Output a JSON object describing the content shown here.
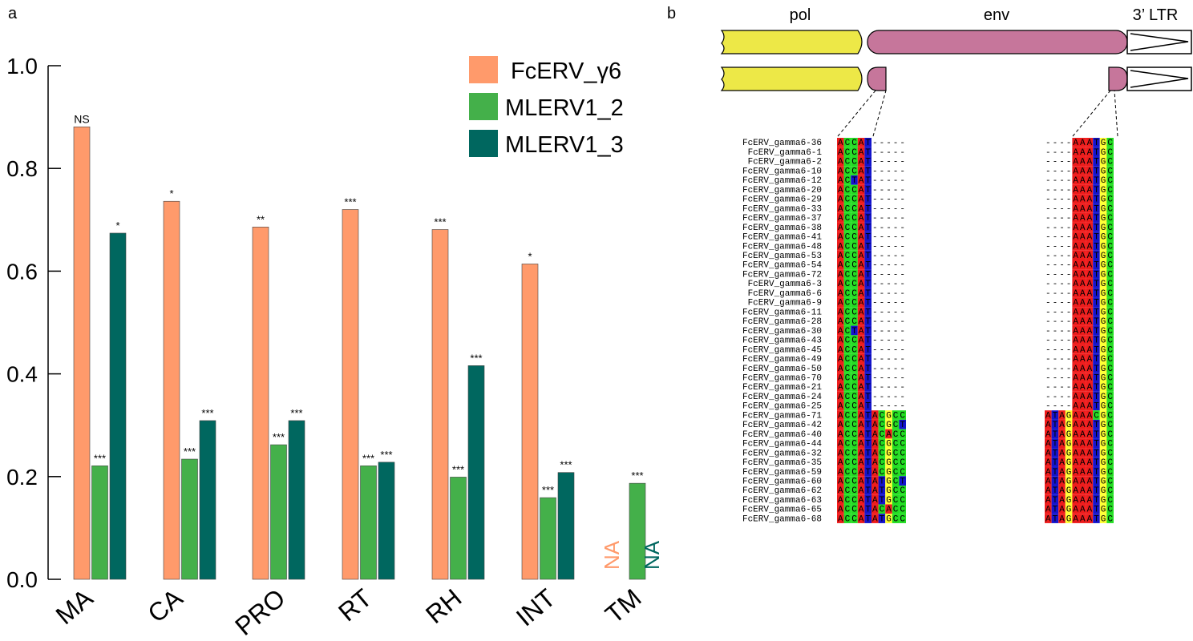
{
  "panel_a": {
    "label": "a",
    "na_label": "NA"
  },
  "panel_b": {
    "label": "b",
    "genes": {
      "pol": "pol",
      "env": "env",
      "ltr": "3’ LTR"
    },
    "sequence_names": [
      "FcERV_gamma6-36",
      "FcERV_gamma6-1",
      "FcERV_gamma6-2",
      "FcERV_gamma6-10",
      "FcERV_gamma6-12",
      "FcERV_gamma6-20",
      "FcERV_gamma6-29",
      "FcERV_gamma6-33",
      "FcERV_gamma6-37",
      "FcERV_gamma6-38",
      "FcERV_gamma6-41",
      "FcERV_gamma6-48",
      "FcERV_gamma6-53",
      "FcERV_gamma6-54",
      "FcERV_gamma6-72",
      "FcERV_gamma6-3",
      "FcERV_gamma6-6",
      "FcERV_gamma6-9",
      "FcERV_gamma6-11",
      "FcERV_gamma6-28",
      "FcERV_gamma6-30",
      "FcERV_gamma6-43",
      "FcERV_gamma6-45",
      "FcERV_gamma6-49",
      "FcERV_gamma6-50",
      "FcERV_gamma6-70",
      "FcERV_gamma6-21",
      "FcERV_gamma6-24",
      "FcERV_gamma6-25",
      "FcERV_gamma6-71",
      "FcERV_gamma6-42",
      "FcERV_gamma6-40",
      "FcERV_gamma6-44",
      "FcERV_gamma6-32",
      "FcERV_gamma6-35",
      "FcERV_gamma6-59",
      "FcERV_gamma6-60",
      "FcERV_gamma6-62",
      "FcERV_gamma6-63",
      "FcERV_gamma6-65",
      "FcERV_gamma6-68"
    ],
    "left_seqs": [
      "ACCAT-----",
      "ACCAT-----",
      "ACCAT-----",
      "ACCAT-----",
      "ACTAT-----",
      "ACCAT-----",
      "ACCAT-----",
      "ACCAT-----",
      "ACCAT-----",
      "ACCAT-----",
      "ACCAT-----",
      "ACCAT-----",
      "ACCAT-----",
      "ACCAT-----",
      "ACCAT-----",
      "ACCAT-----",
      "ACCAT-----",
      "ACCAT-----",
      "ACCAT-----",
      "ACCAT-----",
      "ACTAT-----",
      "ACCAT-----",
      "ACCAT-----",
      "ACCAT-----",
      "ACCAT-----",
      "ACCAT-----",
      "ACCAT-----",
      "ACCAT-----",
      "ACCAT-----",
      "ACCATACGCC",
      "ACCATACGCT",
      "ACCATACACC",
      "ACCATACGCC",
      "ACCATACGCC",
      "ACCATACGCC",
      "ACCATACGCC",
      "ACCATATGCT",
      "ACCATATGCC",
      "ACCATATGCC",
      "ACCATACACC",
      "ACCATATGCC"
    ],
    "right_seqs": [
      "----AAATGC",
      "----AAATGC",
      "----AAATGC",
      "----AAATGC",
      "----AAATGC",
      "----AAATGC",
      "----AAATGC",
      "----AAATGC",
      "----AAATGC",
      "----AAATGC",
      "----AAATGC",
      "----AAATGC",
      "----AAATGC",
      "----AAATGC",
      "----AAATGC",
      "----AAATGC",
      "----AAATGC",
      "----AAATGC",
      "----AAATGC",
      "----AAATGC",
      "----AAATGC",
      "----AAATGC",
      "----AAATGC",
      "----AAATGC",
      "----AAATGC",
      "----AAATGC",
      "----AAATGC",
      "----AAATGC",
      "----AAATGC",
      "ATAGAAACGC",
      "ATAGAAATGC",
      "ATAGAAATGC",
      "ATAGAAATGC",
      "ATAGAAATGC",
      "ATAGAAATGC",
      "ATAGAAATGC",
      "ATAGAAATGC",
      "ATAGAAATGC",
      "ATAGAAATGC",
      "ATAGAAATGC",
      "ATAGAAATGC"
    ]
  },
  "colors": {
    "fcerv": "#ff9a6b",
    "mlerv2": "#44b04a",
    "mlerv3": "#00675f",
    "pol": "#ede847",
    "env": "#c6769b",
    "nt_A": "#ee1c1c",
    "nt_C": "#22dd22",
    "nt_G": "#ffff33",
    "nt_T": "#1414cc"
  },
  "chart_data": {
    "type": "bar",
    "categories": [
      "MA",
      "CA",
      "PRO",
      "RT",
      "RH",
      "INT",
      "TM"
    ],
    "ylim": [
      0,
      1.0
    ],
    "yticks": [
      "0.0",
      "0.2",
      "0.4",
      "0.6",
      "0.8",
      "1.0"
    ],
    "legend_position": "top-right",
    "series": [
      {
        "name": "FcERV_γ6",
        "values": [
          0.881,
          0.736,
          0.686,
          0.72,
          0.681,
          0.614,
          null
        ],
        "sig": [
          "NS",
          "*",
          "**",
          "***",
          "***",
          "*",
          ""
        ]
      },
      {
        "name": "MLERV1_2",
        "values": [
          0.221,
          0.234,
          0.262,
          0.221,
          0.199,
          0.159,
          0.187
        ],
        "sig": [
          "***",
          "***",
          "***",
          "***",
          "***",
          "***",
          "***"
        ]
      },
      {
        "name": "MLERV1_3",
        "values": [
          0.674,
          0.309,
          0.309,
          0.228,
          0.416,
          0.208,
          null
        ],
        "sig": [
          "*",
          "***",
          "***",
          "***",
          "***",
          "***",
          ""
        ]
      }
    ]
  }
}
